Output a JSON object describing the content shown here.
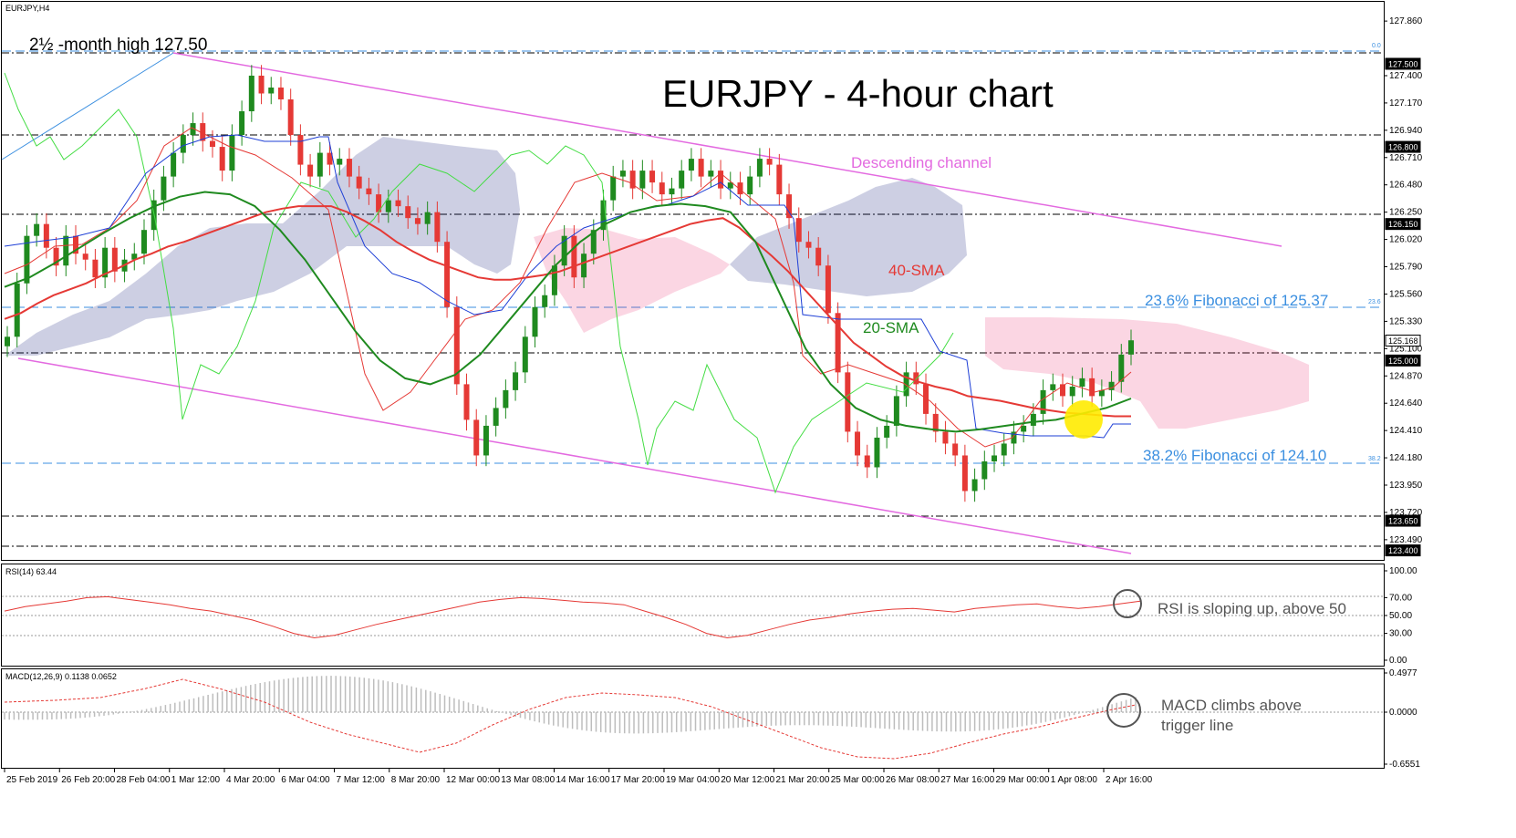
{
  "symbol_label": "EURJPY,H4",
  "annotations": {
    "high_label": "2½ -month high 127.50",
    "title": "EURJPY - 4-hour chart",
    "channel_label": "Descending channel",
    "sma40_label": "40-SMA",
    "sma20_label": "20-SMA",
    "fib236_label": "23.6% Fibonacci of 125.37",
    "fib382_label": "38.2% Fibonacci of 124.10",
    "fib00_tag": "0.0",
    "fib236_tag": "23.6",
    "fib382_tag": "38.2",
    "rsi_note": "RSI is sloping up, above 50",
    "macd_note_line1": "MACD climbs above",
    "macd_note_line2": "trigger line"
  },
  "rsi_header": "RSI(14) 63.44",
  "macd_header": "MACD(12,26,9) 0.1138 0.0652",
  "price_axis_ticks": [
    "127.860",
    "127.400",
    "127.170",
    "126.940",
    "126.710",
    "126.480",
    "126.250",
    "126.020",
    "125.790",
    "125.560",
    "125.330",
    "125.100",
    "124.870",
    "124.640",
    "124.410",
    "124.180",
    "123.950",
    "123.720",
    "123.490"
  ],
  "price_axis_boxes": [
    "127.500",
    "126.800",
    "126.150",
    "125.168",
    "125.000",
    "123.650",
    "123.400"
  ],
  "rsi_axis_ticks": [
    "100.00",
    "70.00",
    "50.00",
    "30.00",
    "0.00"
  ],
  "macd_axis_ticks": [
    "0.4977",
    "0.0000",
    "-0.6551"
  ],
  "time_labels": [
    "25 Feb 2019",
    "26 Feb 20:00",
    "28 Feb 04:00",
    "1 Mar 12:00",
    "4 Mar 20:00",
    "6 Mar 04:00",
    "7 Mar 12:00",
    "8 Mar 20:00",
    "12 Mar 00:00",
    "13 Mar 08:00",
    "14 Mar 16:00",
    "17 Mar 20:00",
    "19 Mar 04:00",
    "20 Mar 12:00",
    "21 Mar 20:00",
    "25 Mar 00:00",
    "26 Mar 08:00",
    "27 Mar 16:00",
    "29 Mar 00:00",
    "1 Apr 08:00",
    "2 Apr 16:00"
  ],
  "chart_data": {
    "type": "candlestick",
    "title": "EURJPY - 4-hour chart",
    "ylim": [
      123.32,
      127.93
    ],
    "levels": [
      127.5,
      126.8,
      126.15,
      125.0,
      123.65,
      123.4
    ],
    "fib_levels": {
      "23.6": 125.37,
      "38.2": 124.1
    },
    "closes": [
      125.2,
      125.65,
      126.05,
      126.15,
      125.95,
      125.8,
      126.05,
      125.9,
      125.85,
      125.7,
      125.95,
      125.75,
      125.85,
      125.9,
      126.1,
      126.35,
      126.55,
      126.75,
      126.9,
      127.0,
      126.85,
      126.8,
      126.6,
      126.9,
      127.1,
      127.4,
      127.25,
      127.3,
      127.2,
      126.9,
      126.65,
      126.55,
      126.75,
      126.65,
      126.7,
      126.55,
      126.45,
      126.4,
      126.25,
      126.35,
      126.3,
      126.2,
      126.15,
      126.25,
      126.0,
      125.45,
      124.8,
      124.5,
      124.2,
      124.45,
      124.6,
      124.75,
      124.9,
      125.2,
      125.45,
      125.55,
      125.8,
      126.05,
      125.7,
      125.9,
      126.1,
      126.35,
      126.55,
      126.6,
      126.45,
      126.6,
      126.5,
      126.4,
      126.45,
      126.6,
      126.7,
      126.55,
      126.6,
      126.45,
      126.5,
      126.4,
      126.55,
      126.7,
      126.65,
      126.4,
      126.2,
      126.0,
      125.95,
      125.8,
      125.4,
      124.9,
      124.4,
      124.2,
      124.1,
      124.35,
      124.45,
      124.7,
      124.9,
      124.8,
      124.55,
      124.4,
      124.3,
      124.2,
      123.9,
      124.0,
      124.15,
      124.2,
      124.3,
      124.4,
      124.45,
      124.55,
      124.75,
      124.8,
      124.7,
      124.78,
      124.85,
      124.7,
      124.75,
      124.82,
      125.05,
      125.17
    ],
    "volume": null,
    "series": [
      {
        "name": "40-SMA",
        "values": [
          125.35,
          125.4,
          125.48,
          125.55,
          125.6,
          125.65,
          125.72,
          125.78,
          125.85,
          125.9,
          125.96,
          126.0,
          126.05,
          126.1,
          126.15,
          126.2,
          126.25,
          126.28,
          126.3,
          126.3,
          126.3,
          126.25,
          126.18,
          126.1,
          126.0,
          125.92,
          125.85,
          125.8,
          125.75,
          125.7,
          125.68,
          125.68,
          125.7,
          125.72,
          125.75,
          125.8,
          125.85,
          125.9,
          125.95,
          126.0,
          126.05,
          126.1,
          126.15,
          126.18,
          126.2,
          126.12,
          126.0,
          125.88,
          125.75,
          125.6,
          125.45,
          125.3,
          125.15,
          125.05,
          124.95,
          124.87,
          124.82,
          124.78,
          124.75,
          124.7,
          124.68,
          124.66,
          124.63,
          124.6,
          124.58,
          124.56,
          124.55,
          124.54,
          124.53,
          124.53
        ]
      },
      {
        "name": "20-SMA",
        "values": [
          125.62,
          125.7,
          125.82,
          125.95,
          126.08,
          126.2,
          126.3,
          126.38,
          126.42,
          126.4,
          126.3,
          126.1,
          125.85,
          125.55,
          125.25,
          125.0,
          124.85,
          124.8,
          124.88,
          125.05,
          125.3,
          125.55,
          125.8,
          126.0,
          126.15,
          126.25,
          126.3,
          126.32,
          126.3,
          126.25,
          126.0,
          125.55,
          125.1,
          124.8,
          124.6,
          124.5,
          124.45,
          124.42,
          124.4,
          124.42,
          124.45,
          124.48,
          124.5,
          124.55,
          124.6,
          124.68
        ]
      }
    ],
    "rsi": {
      "values": [
        55,
        60,
        63,
        66,
        70,
        71,
        68,
        65,
        62,
        58,
        55,
        50,
        45,
        38,
        30,
        25,
        28,
        34,
        40,
        45,
        50,
        55,
        60,
        65,
        68,
        70,
        69,
        67,
        65,
        64,
        62,
        55,
        48,
        40,
        30,
        25,
        28,
        34,
        40,
        45,
        48,
        52,
        55,
        57,
        58,
        56,
        54,
        58,
        60,
        62,
        63,
        60,
        58,
        60,
        63,
        66
      ],
      "levels": [
        70,
        50,
        30
      ]
    },
    "macd": {
      "histogram_range": [
        -0.6551,
        0.4977
      ],
      "signal_trend": "rising",
      "last_macd": 0.1138,
      "last_signal": 0.0652
    }
  }
}
